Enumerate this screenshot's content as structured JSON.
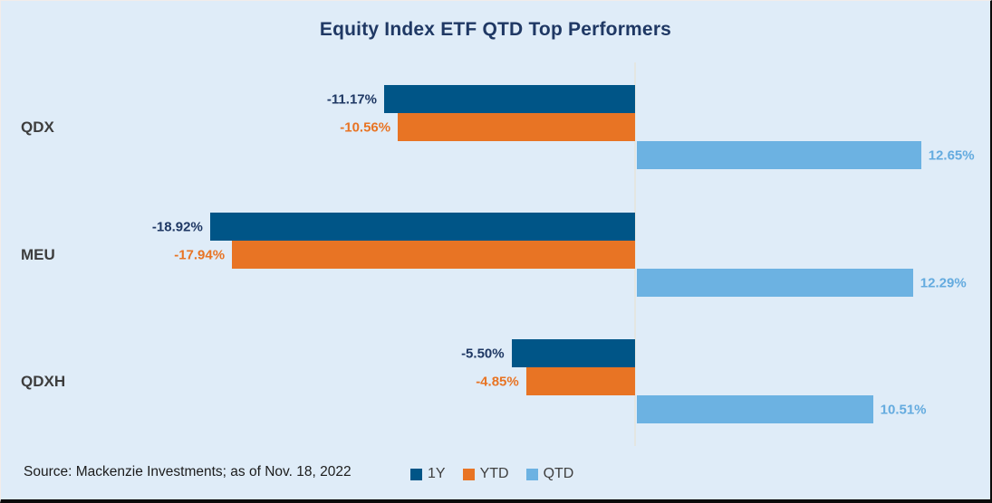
{
  "title": "Equity Index ETF QTD Top Performers",
  "source_note": "Source: Mackenzie Investments; as of Nov. 18, 2022",
  "colors": {
    "background": "#dfecf8",
    "title_text": "#1f3864",
    "category_text": "#3d3d3d",
    "axis_line": "#e4e6e2",
    "series_1y": "#005587",
    "series_ytd": "#e87424",
    "series_qtd": "#6cb2e2",
    "label_1y": "#1f3864",
    "label_ytd": "#e87424",
    "label_qtd": "#64abdf"
  },
  "chart_data": {
    "type": "bar",
    "orientation": "horizontal",
    "title": "Equity Index ETF QTD Top Performers",
    "categories": [
      "QDX",
      "MEU",
      "QDXH"
    ],
    "series": [
      {
        "name": "1Y",
        "color": "#005587",
        "label_color": "#1f3864",
        "values": [
          -11.17,
          -18.92,
          -5.5
        ],
        "labels": [
          "-11.17%",
          "-18.92%",
          "-5.50%"
        ]
      },
      {
        "name": "YTD",
        "color": "#e87424",
        "label_color": "#e87424",
        "values": [
          -10.56,
          -17.94,
          -4.85
        ],
        "labels": [
          "-10.56%",
          "-17.94%",
          "-4.85%"
        ]
      },
      {
        "name": "QTD",
        "color": "#6cb2e2",
        "label_color": "#64abdf",
        "values": [
          12.65,
          12.29,
          10.51
        ],
        "labels": [
          "12.65%",
          "12.29%",
          "10.51%"
        ]
      }
    ],
    "xlim": [
      -20,
      16
    ],
    "grid": false,
    "legend_position": "bottom",
    "legend_entries": [
      "1Y",
      "YTD",
      "QTD"
    ]
  }
}
